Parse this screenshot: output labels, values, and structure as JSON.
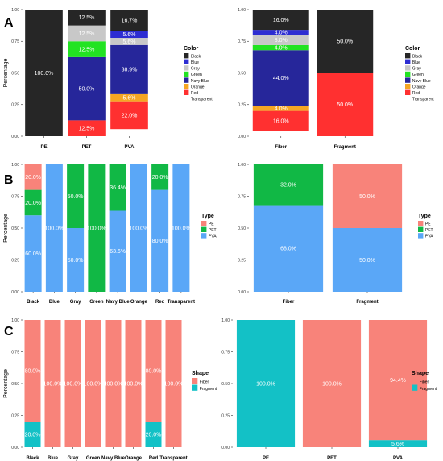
{
  "panels": [
    {
      "letter": "A"
    },
    {
      "letter": "B"
    },
    {
      "letter": "C"
    }
  ],
  "chart_data": [
    {
      "type": "bar",
      "stacked": true,
      "ylabel": "Percentage",
      "xlabel": "",
      "ylim": [
        0,
        1
      ],
      "yticks": [
        "0.00",
        "0.25",
        "0.50",
        "0.75",
        "1.00"
      ],
      "categories": [
        "PE",
        "PET",
        "PVA"
      ],
      "legend": {
        "title": "Color",
        "position": "right",
        "entries": [
          "Black",
          "Blue",
          "Gray",
          "Green",
          "Navy Blue",
          "Orange",
          "Red",
          "Transparent"
        ]
      },
      "series": [
        {
          "name": "Black",
          "color": "#262626",
          "values": [
            1.0,
            0.125,
            0.167
          ],
          "labels": [
            "100.0%",
            "12.5%",
            "16.7%"
          ]
        },
        {
          "name": "Blue",
          "color": "#2d2dd2",
          "values": [
            0,
            0,
            0.056
          ],
          "labels": [
            "",
            "",
            "5.6%"
          ]
        },
        {
          "name": "Gray",
          "color": "#c8c8c8",
          "values": [
            0,
            0.125,
            0.056
          ],
          "labels": [
            "",
            "12.5%",
            "5.6%"
          ]
        },
        {
          "name": "Green",
          "color": "#22e322",
          "values": [
            0,
            0.125,
            0
          ],
          "labels": [
            "",
            "12.5%",
            ""
          ]
        },
        {
          "name": "Navy Blue",
          "color": "#26269a",
          "values": [
            0,
            0.5,
            0.389
          ],
          "labels": [
            "",
            "50.0%",
            "38.9%"
          ]
        },
        {
          "name": "Orange",
          "color": "#f5a623",
          "values": [
            0,
            0,
            0.056
          ],
          "labels": [
            "",
            "",
            "5.6%"
          ]
        },
        {
          "name": "Red",
          "color": "#ff3030",
          "values": [
            0,
            0.125,
            0.22
          ],
          "labels": [
            "",
            "12.5%",
            "22.0%"
          ]
        },
        {
          "name": "Transparent",
          "color": "#ffffff",
          "values": [
            0,
            0,
            0.056
          ],
          "labels": [
            "",
            "",
            ""
          ]
        }
      ]
    },
    {
      "type": "bar",
      "stacked": true,
      "ylabel": "",
      "xlabel": "",
      "ylim": [
        0,
        1
      ],
      "yticks": [
        "0.00",
        "0.25",
        "0.50",
        "0.75",
        "1.00"
      ],
      "categories": [
        "Fiber",
        "Fragment"
      ],
      "legend": {
        "title": "Color",
        "position": "right",
        "entries": [
          "Black",
          "Blue",
          "Gray",
          "Green",
          "Navy Blue",
          "Orange",
          "Red",
          "Transparent"
        ]
      },
      "series": [
        {
          "name": "Black",
          "color": "#262626",
          "values": [
            0.16,
            0.5
          ],
          "labels": [
            "16.0%",
            "50.0%"
          ]
        },
        {
          "name": "Blue",
          "color": "#2d2dd2",
          "values": [
            0.04,
            0
          ],
          "labels": [
            "4.0%",
            ""
          ]
        },
        {
          "name": "Gray",
          "color": "#c8c8c8",
          "values": [
            0.08,
            0
          ],
          "labels": [
            "8.0%",
            ""
          ]
        },
        {
          "name": "Green",
          "color": "#22e322",
          "values": [
            0.04,
            0
          ],
          "labels": [
            "4.0%",
            ""
          ]
        },
        {
          "name": "Navy Blue",
          "color": "#26269a",
          "values": [
            0.44,
            0
          ],
          "labels": [
            "44.0%",
            ""
          ]
        },
        {
          "name": "Orange",
          "color": "#f5a623",
          "values": [
            0.04,
            0
          ],
          "labels": [
            "4.0%",
            ""
          ]
        },
        {
          "name": "Red",
          "color": "#ff3030",
          "values": [
            0.16,
            0.5
          ],
          "labels": [
            "16.0%",
            "50.0%"
          ]
        },
        {
          "name": "Transparent",
          "color": "#ffffff",
          "values": [
            0.04,
            0
          ],
          "labels": [
            "",
            ""
          ]
        }
      ]
    },
    {
      "type": "bar",
      "stacked": true,
      "ylabel": "Percentage",
      "xlabel": "",
      "ylim": [
        0,
        1
      ],
      "yticks": [
        "0.00",
        "0.25",
        "0.50",
        "0.75",
        "1.00"
      ],
      "categories": [
        "Black",
        "Blue",
        "Gray",
        "Green",
        "Navy Blue",
        "Orange",
        "Red",
        "Transparent"
      ],
      "legend": {
        "title": "Type",
        "position": "right",
        "entries": [
          "PE",
          "PET",
          "PVA"
        ]
      },
      "series": [
        {
          "name": "PE",
          "color": "#f8837a",
          "values": [
            0.2,
            0,
            0,
            0,
            0,
            0,
            0,
            0
          ],
          "labels": [
            "20.0%",
            "",
            "",
            "",
            "",
            "",
            "",
            ""
          ]
        },
        {
          "name": "PET",
          "color": "#11b845",
          "values": [
            0.2,
            0,
            0.5,
            1.0,
            0.364,
            0,
            0.2,
            0
          ],
          "labels": [
            "20.0%",
            "",
            "50.0%",
            "100.0%",
            "36.4%",
            "",
            "20.0%",
            ""
          ]
        },
        {
          "name": "PVA",
          "color": "#5aa7f7",
          "values": [
            0.6,
            1.0,
            0.5,
            0,
            0.636,
            1.0,
            0.8,
            1.0
          ],
          "labels": [
            "60.0%",
            "100.0%",
            "50.0%",
            "",
            "63.6%",
            "100.0%",
            "80.0%",
            "100.0%"
          ]
        }
      ]
    },
    {
      "type": "bar",
      "stacked": true,
      "ylabel": "",
      "xlabel": "",
      "ylim": [
        0,
        1
      ],
      "yticks": [
        "0.00",
        "0.25",
        "0.50",
        "0.75",
        "1.00"
      ],
      "categories": [
        "Fiber",
        "Fragment"
      ],
      "legend": {
        "title": "Type",
        "position": "right",
        "entries": [
          "PE",
          "PET",
          "PVA"
        ]
      },
      "series": [
        {
          "name": "PE",
          "color": "#f8837a",
          "values": [
            0,
            0.5
          ],
          "labels": [
            "",
            "50.0%"
          ]
        },
        {
          "name": "PET",
          "color": "#11b845",
          "values": [
            0.32,
            0
          ],
          "labels": [
            "32.0%",
            ""
          ]
        },
        {
          "name": "PVA",
          "color": "#5aa7f7",
          "values": [
            0.68,
            0.5
          ],
          "labels": [
            "68.0%",
            "50.0%"
          ]
        }
      ]
    },
    {
      "type": "bar",
      "stacked": true,
      "ylabel": "Percentage",
      "xlabel": "",
      "ylim": [
        0,
        1
      ],
      "yticks": [
        "0.00",
        "0.25",
        "0.50",
        "0.75",
        "1.00"
      ],
      "categories": [
        "Black",
        "Blue",
        "Gray",
        "Green",
        "Navy Blue",
        "Orange",
        "Red",
        "Transparent"
      ],
      "legend": {
        "title": "Shape",
        "position": "right",
        "entries": [
          "Fiber",
          "Fragment"
        ]
      },
      "series": [
        {
          "name": "Fiber",
          "color": "#f8837a",
          "values": [
            0.8,
            1,
            1,
            1,
            1,
            1,
            0.8,
            1
          ],
          "labels": [
            "80.0%",
            "100.0%",
            "100.0%",
            "100.0%",
            "100.0%",
            "100.0%",
            "80.0%",
            "100.0%"
          ]
        },
        {
          "name": "Fragment",
          "color": "#13c1c6",
          "values": [
            0.2,
            0,
            0,
            0,
            0,
            0,
            0.2,
            0
          ],
          "labels": [
            "20.0%",
            "",
            "",
            "",
            "",
            "",
            "20.0%",
            ""
          ]
        }
      ]
    },
    {
      "type": "bar",
      "stacked": true,
      "ylabel": "",
      "xlabel": "",
      "ylim": [
        0,
        1
      ],
      "yticks": [
        "0.00",
        "0.25",
        "0.50",
        "0.75",
        "1.00"
      ],
      "categories": [
        "PE",
        "PET",
        "PVA"
      ],
      "legend": {
        "title": "Shape",
        "position": "right",
        "entries": [
          "Fiber",
          "Fragment"
        ]
      },
      "series": [
        {
          "name": "Fiber",
          "color": "#f8837a",
          "values": [
            0,
            1.0,
            0.944
          ],
          "labels": [
            "",
            "100.0%",
            "94.4%"
          ]
        },
        {
          "name": "Fragment",
          "color": "#13c1c6",
          "values": [
            1.0,
            0,
            0.056
          ],
          "labels": [
            "100.0%",
            "",
            "5.6%"
          ]
        }
      ]
    }
  ]
}
